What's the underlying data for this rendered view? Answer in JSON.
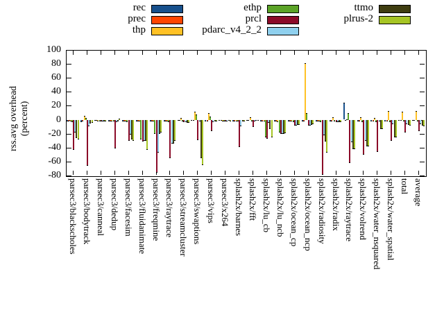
{
  "figure": {
    "ylabel_line1": "rss.avg overhead",
    "ylabel_line2": "(percent)",
    "background_color": "#ffffff",
    "axis_color": "#000000"
  },
  "chart_data": {
    "type": "bar",
    "title": "",
    "xlabel": "",
    "ylabel": "rss.avg overhead (percent)",
    "ylim": [
      -80,
      100
    ],
    "yticks": [
      100,
      80,
      60,
      40,
      20,
      0,
      -20,
      -40,
      -60,
      -80
    ],
    "grid": false,
    "legend_position": "top",
    "legend_columns": [
      [
        "rec",
        "prec",
        "thp"
      ],
      [
        "ethp",
        "prcl",
        "pdarc_v4_2_2"
      ],
      [
        "ttmo",
        "plrus-2"
      ]
    ],
    "categories": [
      "parsec3/blackscholes",
      "parsec3/bodytrack",
      "parsec3/canneal",
      "parsec3/dedup",
      "parsec3/facesim",
      "parsec3/fluidanimate",
      "parsec3/freqmine",
      "parsec3/raytrace",
      "parsec3/streamcluster",
      "parsec3/swaptions",
      "parsec3/vips",
      "parsec3/x264",
      "splash2x/barnes",
      "splash2x/fft",
      "splash2x/lu_cb",
      "splash2x/lu_ncb",
      "splash2x/ocean_cp",
      "splash2x/ocean_ncp",
      "splash2x/radiosity",
      "splash2x/radix",
      "splash2x/raytrace",
      "splash2x/volrend",
      "splash2x/water_nsquared",
      "splash2x/water_spatial",
      "total",
      "average"
    ],
    "series": [
      {
        "name": "rec",
        "color": "#17508c",
        "values": [
          -2,
          -3,
          -1,
          -2,
          -2,
          -2,
          -2,
          -2,
          -1,
          -1,
          -2,
          -1,
          -2,
          -1,
          -2,
          -2,
          -2,
          -2,
          -2,
          -2,
          24,
          -2,
          -2,
          -2,
          -1,
          -1
        ]
      },
      {
        "name": "prec",
        "color": "#ff4500",
        "values": [
          -2,
          -2,
          -1,
          -2,
          -2,
          -2,
          -2,
          -2,
          -1,
          -1,
          -2,
          -1,
          -2,
          -1,
          -2,
          -2,
          -2,
          -2,
          -2,
          -2,
          -1,
          -2,
          -2,
          -2,
          -1,
          -1
        ]
      },
      {
        "name": "thp",
        "color": "#ffc125",
        "values": [
          -2,
          6,
          -2,
          -2,
          -2,
          -2,
          -2,
          -2,
          3,
          12,
          10,
          -2,
          -2,
          4,
          -2,
          -3,
          -2,
          81,
          -2,
          4,
          1,
          4,
          3,
          13,
          12,
          13
        ]
      },
      {
        "name": "ethp",
        "color": "#5ba327",
        "values": [
          -3,
          3,
          -2,
          -2,
          -3,
          -28,
          -20,
          -3,
          -2,
          8,
          5,
          -2,
          -2,
          -2,
          -25,
          -18,
          -3,
          10,
          -3,
          -2,
          10,
          -3,
          -3,
          -3,
          -2,
          -2
        ]
      },
      {
        "name": "prcl",
        "color": "#8b0a28",
        "values": [
          -43,
          -66,
          -2,
          -41,
          -30,
          -31,
          -76,
          -55,
          -3,
          -29,
          -16,
          -2,
          -39,
          -10,
          -27,
          -20,
          -8,
          -8,
          -79,
          -3,
          -62,
          -50,
          -46,
          -30,
          -18,
          -16
        ]
      },
      {
        "name": "pdarc_v4_2_2",
        "color": "#8fd0ee",
        "values": [
          -18,
          -9,
          -2,
          -3,
          -21,
          -30,
          -47,
          -34,
          -3,
          -2,
          -3,
          -2,
          -9,
          -2,
          -4,
          -20,
          -8,
          -8,
          -22,
          -3,
          -32,
          -30,
          -2,
          -6,
          -6,
          -6
        ]
      },
      {
        "name": "ttmo",
        "color": "#3f3d10",
        "values": [
          -26,
          -5,
          -2,
          -2,
          -28,
          -30,
          -20,
          -34,
          -4,
          -55,
          -2,
          -1,
          -2,
          -1,
          -13,
          -20,
          -7,
          -7,
          -31,
          -3,
          -42,
          -38,
          -13,
          -25,
          -7,
          -8
        ]
      },
      {
        "name": "plrus-2",
        "color": "#a6c524",
        "values": [
          -28,
          -4,
          -2,
          2,
          -30,
          -43,
          -18,
          -30,
          -4,
          -65,
          -2,
          -2,
          -2,
          -1,
          -25,
          -19,
          -7,
          -6,
          -47,
          -3,
          -42,
          -38,
          -13,
          -25,
          -8,
          -9
        ]
      }
    ]
  }
}
